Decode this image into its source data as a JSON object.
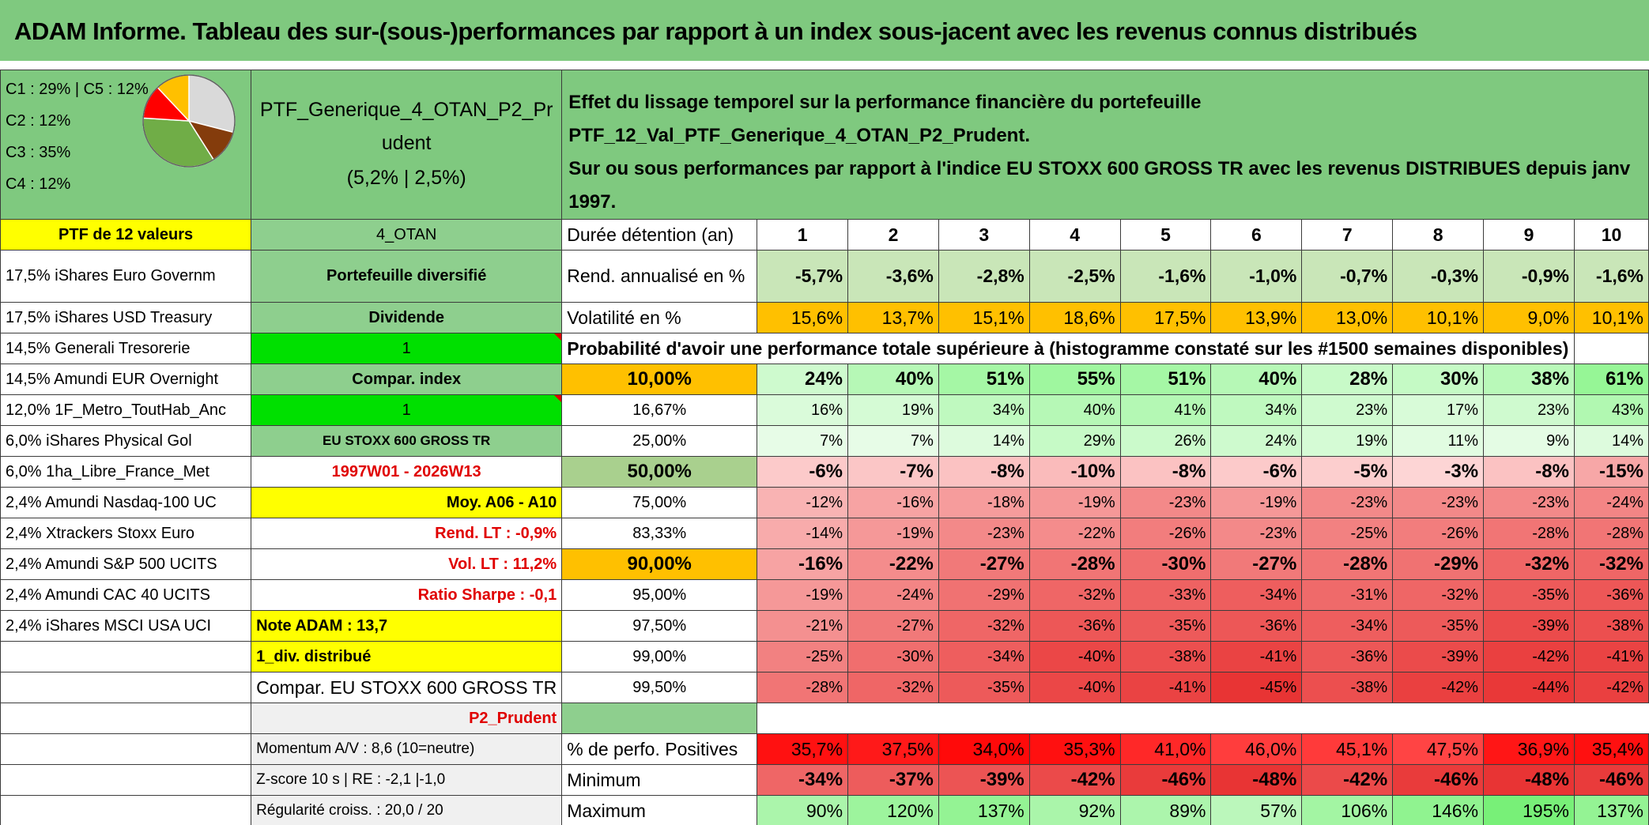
{
  "title": "ADAM Informe. Tableau des sur-(sous-)performances par rapport à un index sous-jacent avec les revenus connus distribués",
  "allocation": {
    "lines": [
      "C1 : 29% | C5 : 12%",
      "C2 : 12%",
      "C3 : 35%",
      "C4 : 12%"
    ],
    "pie_slices": [
      {
        "label": "C1",
        "pct": 29,
        "color": "#d9d9d9"
      },
      {
        "label": "C5",
        "pct": 12,
        "color": "#843c0c"
      },
      {
        "label": "C3",
        "pct": 35,
        "color": "#70ad47"
      },
      {
        "label": "C2",
        "pct": 12,
        "color": "#ff0000"
      },
      {
        "label": "C4",
        "pct": 12,
        "color": "#ffc000"
      }
    ]
  },
  "portfolio": {
    "name": "PTF_Generique_4_OTAN_P2_Prudent",
    "stats": "(5,2% | 2,5%)",
    "count_label": "PTF de 12 valeurs",
    "code": "4_OTAN",
    "type": "Portefeuille diversifié",
    "income_label": "Dividende",
    "flag1": "1",
    "compar_index": "Compar. index",
    "flag2": "1",
    "index_name": "EU STOXX 600 GROSS TR",
    "period": "1997W01 - 2026W13",
    "moy": "Moy. A06 - A10",
    "rend_lt": "Rend. LT : -0,9%",
    "vol_lt": "Vol. LT : 11,2%",
    "sharpe": "Ratio Sharpe : -0,1",
    "note": "Note ADAM : 13,7",
    "div": "1_div. distribué",
    "compar_label": "Compar. EU STOXX 600 GROSS TR",
    "profile": "P2_Prudent",
    "momentum": "Momentum A/V : 8,6 (10=neutre)",
    "zscore": "Z-score 10 s | RE : -2,1 |-1,0",
    "regularite": "Régularité croiss. : 20,0 / 20"
  },
  "holdings": [
    "17,5% iShares Euro Governm",
    "17,5% iShares USD Treasury",
    "14,5% Generali Tresorerie",
    "14,5% Amundi EUR Overnight",
    "12,0% 1F_Metro_ToutHab_Anc",
    "6,0% iShares Physical Gol",
    "6,0% 1ha_Libre_France_Met",
    "2,4% Amundi Nasdaq-100 UC",
    "2,4% Xtrackers Stoxx Euro",
    "2,4% Amundi S&P 500 UCITS",
    "2,4% Amundi CAC 40 UCITS",
    "2,4% iShares MSCI USA UCI"
  ],
  "description": {
    "line1": "Effet du lissage temporel sur la performance financière du portefeuille PTF_12_Val_PTF_Generique_4_OTAN_P2_Prudent.",
    "line2": "Sur ou sous performances par rapport à l'indice EU STOXX 600 GROSS TR avec les revenus DISTRIBUES depuis janv 1997."
  },
  "table": {
    "duration_label": "Durée détention (an)",
    "durations": [
      "1",
      "2",
      "3",
      "4",
      "5",
      "6",
      "7",
      "8",
      "9",
      "10"
    ],
    "rend_label": "Rend. annualisé en %",
    "rend": [
      "-5,7%",
      "-3,6%",
      "-2,8%",
      "-2,5%",
      "-1,6%",
      "-1,0%",
      "-0,7%",
      "-0,3%",
      "-0,9%",
      "-1,6%"
    ],
    "vol_label": "Volatilité en %",
    "vol": [
      "15,6%",
      "13,7%",
      "15,1%",
      "18,6%",
      "17,5%",
      "13,9%",
      "13,0%",
      "10,1%",
      "9,0%",
      "10,1%"
    ],
    "prob_title": "Probabilité d'avoir une performance totale supérieure à (histogramme constaté sur les #1500 semaines disponibles)",
    "quantiles": [
      {
        "label": "10,00%",
        "values": [
          "24%",
          "40%",
          "51%",
          "55%",
          "51%",
          "40%",
          "28%",
          "30%",
          "38%",
          "61%"
        ]
      },
      {
        "label": "16,67%",
        "values": [
          "16%",
          "19%",
          "34%",
          "40%",
          "41%",
          "34%",
          "23%",
          "17%",
          "23%",
          "43%"
        ]
      },
      {
        "label": "25,00%",
        "values": [
          "7%",
          "7%",
          "14%",
          "29%",
          "26%",
          "24%",
          "19%",
          "11%",
          "9%",
          "14%"
        ]
      },
      {
        "label": "50,00%",
        "values": [
          "-6%",
          "-7%",
          "-8%",
          "-10%",
          "-8%",
          "-6%",
          "-5%",
          "-3%",
          "-8%",
          "-15%"
        ]
      },
      {
        "label": "75,00%",
        "values": [
          "-12%",
          "-16%",
          "-18%",
          "-19%",
          "-23%",
          "-19%",
          "-23%",
          "-23%",
          "-23%",
          "-24%"
        ]
      },
      {
        "label": "83,33%",
        "values": [
          "-14%",
          "-19%",
          "-23%",
          "-22%",
          "-26%",
          "-23%",
          "-25%",
          "-26%",
          "-28%",
          "-28%"
        ]
      },
      {
        "label": "90,00%",
        "values": [
          "-16%",
          "-22%",
          "-27%",
          "-28%",
          "-30%",
          "-27%",
          "-28%",
          "-29%",
          "-32%",
          "-32%"
        ]
      },
      {
        "label": "95,00%",
        "values": [
          "-19%",
          "-24%",
          "-29%",
          "-32%",
          "-33%",
          "-34%",
          "-31%",
          "-32%",
          "-35%",
          "-36%"
        ]
      },
      {
        "label": "97,50%",
        "values": [
          "-21%",
          "-27%",
          "-32%",
          "-36%",
          "-35%",
          "-36%",
          "-34%",
          "-35%",
          "-39%",
          "-38%"
        ]
      },
      {
        "label": "99,00%",
        "values": [
          "-25%",
          "-30%",
          "-34%",
          "-40%",
          "-38%",
          "-41%",
          "-36%",
          "-39%",
          "-42%",
          "-41%"
        ]
      },
      {
        "label": "99,50%",
        "values": [
          "-28%",
          "-32%",
          "-35%",
          "-40%",
          "-41%",
          "-45%",
          "-38%",
          "-42%",
          "-44%",
          "-42%"
        ]
      }
    ],
    "pos_label": "% de perfo. Positives",
    "pos": [
      "35,7%",
      "37,5%",
      "34,0%",
      "35,3%",
      "41,0%",
      "46,0%",
      "45,1%",
      "47,5%",
      "36,9%",
      "35,4%"
    ],
    "min_label": "Minimum",
    "min": [
      "-34%",
      "-37%",
      "-39%",
      "-42%",
      "-46%",
      "-48%",
      "-42%",
      "-46%",
      "-48%",
      "-46%"
    ],
    "max_label": "Maximum",
    "max": [
      "90%",
      "120%",
      "137%",
      "92%",
      "89%",
      "57%",
      "106%",
      "146%",
      "195%",
      "137%"
    ]
  }
}
